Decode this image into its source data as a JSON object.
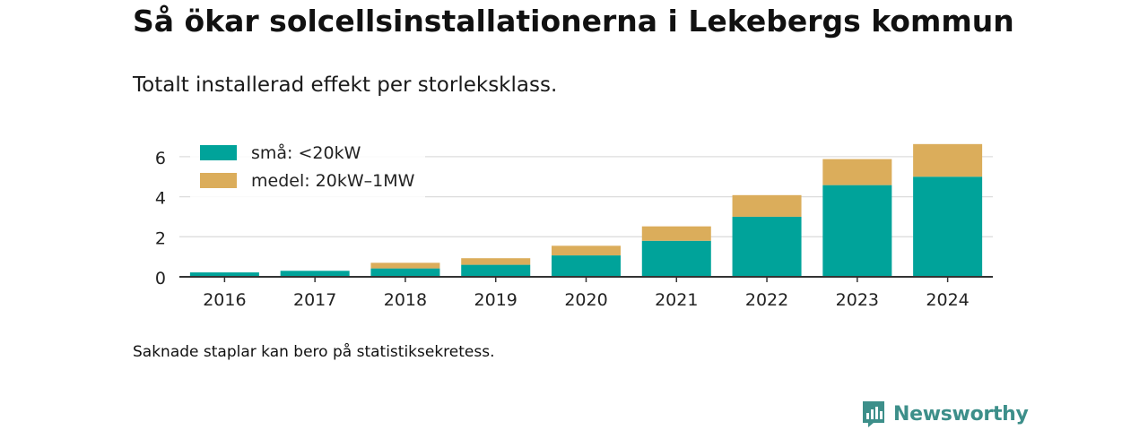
{
  "title": "Så ökar solcellsinstallationerna i Lekebergs kommun",
  "subtitle": "Totalt installerad effekt per storleksklass.",
  "footnote": "Saknade staplar kan bero på statistiksekretess.",
  "brand": "Newsworthy",
  "colors": {
    "small": "#00a39a",
    "medium": "#dbad5b",
    "brand": "#3d8f8a",
    "grid": "#dddddd",
    "axis": "#333333"
  },
  "chart_data": {
    "type": "bar",
    "stacked": true,
    "categories": [
      "2016",
      "2017",
      "2018",
      "2019",
      "2020",
      "2021",
      "2022",
      "2023",
      "2024"
    ],
    "series": [
      {
        "name": "små: <20kW",
        "values": [
          0.22,
          0.3,
          0.42,
          0.6,
          1.07,
          1.8,
          3.0,
          4.58,
          5.0
        ]
      },
      {
        "name": "medel: 20kW–1MW",
        "values": [
          0.0,
          0.0,
          0.28,
          0.33,
          0.48,
          0.72,
          1.08,
          1.3,
          1.63
        ]
      }
    ],
    "yticks": [
      0,
      2,
      4,
      6
    ],
    "ylim": [
      0,
      6.6
    ],
    "grid": true,
    "legend_position": "top-left"
  }
}
